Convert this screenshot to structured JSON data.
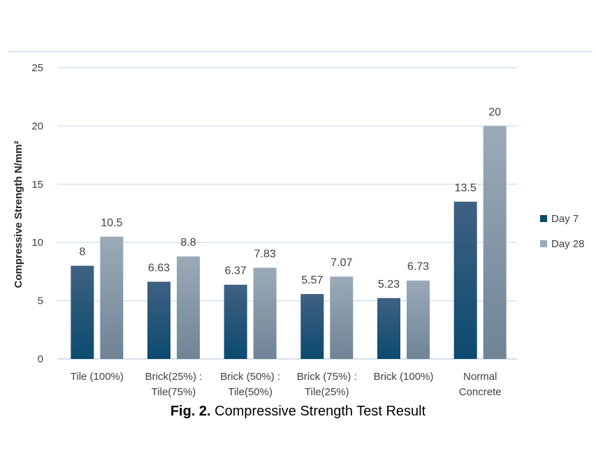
{
  "chart_data": {
    "type": "bar",
    "categories": [
      [
        "Tile (100%)"
      ],
      [
        "Brick(25%) :",
        "Tile(75%)"
      ],
      [
        "Brick (50%) :",
        "Tile(50%)"
      ],
      [
        "Brick (75%) :",
        "Tile(25%)"
      ],
      [
        "Brick (100%)"
      ],
      [
        "Normal",
        "Concrete"
      ]
    ],
    "series": [
      {
        "name": "Day 7",
        "values": [
          8,
          6.63,
          6.37,
          5.57,
          5.23,
          13.5
        ],
        "color_top": "#3F6182",
        "color_bottom": "#0B4A6F"
      },
      {
        "name": "Day 28",
        "values": [
          10.5,
          8.8,
          7.83,
          7.07,
          6.73,
          20
        ],
        "color_top": "#9BAAB8",
        "color_bottom": "#6F8496"
      }
    ],
    "data_labels": [
      [
        "8",
        "6.63",
        "6.37",
        "5.57",
        "5.23",
        "13.5"
      ],
      [
        "10.5",
        "8.8",
        "7.83",
        "7.07",
        "6.73",
        "20"
      ]
    ],
    "ylabel": "Compressive Strength N/mm²",
    "xlabel": "",
    "ylim": [
      0,
      25
    ],
    "yticks": [
      0,
      5,
      10,
      15,
      20,
      25
    ],
    "grid": true,
    "legend": "right"
  },
  "caption": {
    "label": "Fig. 2.",
    "text": " Compressive Strength Test Result"
  }
}
